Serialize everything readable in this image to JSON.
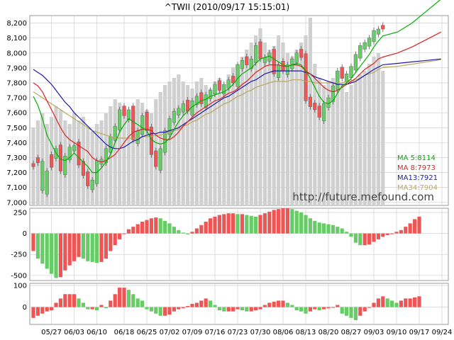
{
  "title": "^TWII  (2010/09/17 15:15:01)",
  "watermark": "http://future.mefound.com",
  "colors": {
    "up": "#66cc66",
    "down": "#ee5555",
    "volume": "#d0d0d0",
    "ma5": "#00b000",
    "ma8": "#dd2222",
    "ma13": "#1a1aaa",
    "ma34": "#b8a860",
    "grid": "#c8c8c8",
    "frame": "#999999"
  },
  "chart_data": [
    {
      "type": "candlestick",
      "name": "price",
      "ylim": [
        6980,
        8250
      ],
      "yticks": [
        "7,000",
        "7,100",
        "7,200",
        "7,300",
        "7,400",
        "7,500",
        "7,600",
        "7,700",
        "7,800",
        "7,900",
        "8,000",
        "8,100",
        "8,200"
      ],
      "ytick_values": [
        7000,
        7100,
        7200,
        7300,
        7400,
        7500,
        7600,
        7700,
        7800,
        7900,
        8000,
        8100,
        8200
      ],
      "xticks": [
        "05/27",
        "06/03",
        "06/10",
        "06/18",
        "06/25",
        "07/02",
        "07/09",
        "07/16",
        "07/23",
        "07/30",
        "08/06",
        "08/13",
        "08/20",
        "08/27",
        "09/03",
        "09/10",
        "09/17",
        "09/24"
      ],
      "xtick_index": [
        4,
        9,
        14,
        20,
        25,
        30,
        35,
        40,
        45,
        50,
        55,
        60,
        65,
        70,
        75,
        80,
        85,
        90
      ],
      "close": [
        7240,
        7300,
        7080,
        7210,
        7320,
        7360,
        7210,
        7310,
        7370,
        7380,
        7250,
        7180,
        7110,
        7150,
        7280,
        7290,
        7360,
        7440,
        7510,
        7620,
        7580,
        7620,
        7420,
        7480,
        7580,
        7480,
        7320,
        7240,
        7360,
        7480,
        7560,
        7610,
        7630,
        7660,
        7610,
        7680,
        7710,
        7660,
        7720,
        7750,
        7790,
        7750,
        7790,
        7820,
        7800,
        7920,
        7950,
        7920,
        7960,
        8050,
        7960,
        7970,
        8000,
        7860,
        7920,
        7880,
        7920,
        7960,
        8000,
        7970,
        7680,
        7640,
        7620,
        7570,
        7660,
        7700,
        7780,
        7880,
        7830,
        7860,
        7910,
        7990,
        8050,
        8070,
        8100,
        8150,
        8160,
        8160
      ],
      "candles_dir": [
        "d",
        "d",
        "u",
        "u",
        "d",
        "u",
        "d",
        "u",
        "u",
        "u",
        "d",
        "d",
        "d",
        "u",
        "u",
        "u",
        "u",
        "u",
        "u",
        "u",
        "d",
        "u",
        "d",
        "u",
        "u",
        "d",
        "d",
        "d",
        "u",
        "u",
        "u",
        "u",
        "u",
        "u",
        "d",
        "u",
        "u",
        "d",
        "u",
        "u",
        "u",
        "d",
        "u",
        "u",
        "d",
        "u",
        "u",
        "d",
        "u",
        "u",
        "d",
        "u",
        "u",
        "d",
        "u",
        "d",
        "u",
        "u",
        "u",
        "d",
        "d",
        "d",
        "d",
        "d",
        "u",
        "u",
        "u",
        "u",
        "d",
        "u",
        "u",
        "u",
        "u",
        "u",
        "u",
        "u",
        "u",
        "d"
      ],
      "series": [
        {
          "name": "MA  5:8114",
          "label": "MA  5:8114"
        },
        {
          "name": "MA  8:7973",
          "label": "MA  8:7973"
        },
        {
          "name": "MA13:7921",
          "label": "MA13:7921"
        },
        {
          "name": "MA34:7904",
          "label": "MA34:7904"
        }
      ],
      "ma5": [
        7710,
        7650,
        7560,
        7450,
        7390,
        7330,
        7290,
        7280,
        7300,
        7330,
        7300,
        7270,
        7240,
        7200,
        7200,
        7230,
        7270,
        7320,
        7400,
        7470,
        7520,
        7560,
        7540,
        7520,
        7500,
        7480,
        7420,
        7400,
        7390,
        7400,
        7430,
        7490,
        7540,
        7580,
        7610,
        7640,
        7660,
        7680,
        7690,
        7710,
        7720,
        7730,
        7740,
        7760,
        7790,
        7830,
        7860,
        7880,
        7900,
        7930,
        7960,
        7970,
        7980,
        7960,
        7940,
        7920,
        7910,
        7920,
        7930,
        7920,
        7880,
        7830,
        7770,
        7710,
        7670,
        7660,
        7680,
        7730,
        7780,
        7800,
        7830,
        7870,
        7910,
        7950,
        7990,
        8040,
        8080,
        8114
      ],
      "ma8": [
        7800,
        7780,
        7740,
        7680,
        7620,
        7560,
        7500,
        7450,
        7420,
        7400,
        7380,
        7360,
        7340,
        7300,
        7280,
        7270,
        7280,
        7300,
        7320,
        7360,
        7400,
        7440,
        7470,
        7480,
        7490,
        7490,
        7480,
        7450,
        7430,
        7420,
        7420,
        7440,
        7470,
        7510,
        7540,
        7570,
        7600,
        7620,
        7640,
        7660,
        7680,
        7690,
        7710,
        7730,
        7740,
        7760,
        7790,
        7810,
        7840,
        7870,
        7890,
        7910,
        7920,
        7920,
        7920,
        7910,
        7910,
        7920,
        7920,
        7910,
        7880,
        7860,
        7830,
        7800,
        7770,
        7750,
        7740,
        7750,
        7770,
        7790,
        7810,
        7830,
        7860,
        7890,
        7910,
        7930,
        7960,
        7973
      ],
      "ma13": [
        7890,
        7870,
        7850,
        7820,
        7790,
        7750,
        7710,
        7670,
        7640,
        7600,
        7570,
        7540,
        7510,
        7480,
        7450,
        7420,
        7390,
        7370,
        7360,
        7360,
        7370,
        7390,
        7410,
        7420,
        7440,
        7450,
        7460,
        7460,
        7470,
        7470,
        7480,
        7490,
        7500,
        7520,
        7540,
        7560,
        7580,
        7600,
        7620,
        7640,
        7660,
        7680,
        7700,
        7710,
        7730,
        7750,
        7770,
        7790,
        7810,
        7820,
        7840,
        7860,
        7870,
        7880,
        7880,
        7880,
        7880,
        7880,
        7880,
        7880,
        7870,
        7860,
        7840,
        7830,
        7820,
        7810,
        7800,
        7790,
        7790,
        7790,
        7800,
        7810,
        7830,
        7850,
        7870,
        7890,
        7905,
        7921
      ],
      "ma34": [
        7740,
        7720,
        7700,
        7680,
        7660,
        7640,
        7620,
        7600,
        7580,
        7560,
        7540,
        7520,
        7500,
        7480,
        7470,
        7460,
        7450,
        7440,
        7430,
        7430,
        7430,
        7430,
        7430,
        7430,
        7440,
        7440,
        7440,
        7450,
        7450,
        7460,
        7470,
        7480,
        7490,
        7510,
        7520,
        7540,
        7550,
        7570,
        7590,
        7600,
        7620,
        7640,
        7660,
        7670,
        7690,
        7710,
        7720,
        7740,
        7750,
        7770,
        7780,
        7790,
        7800,
        7810,
        7810,
        7810,
        7810,
        7820,
        7820,
        7820,
        7810,
        7810,
        7800,
        7800,
        7800,
        7800,
        7800,
        7800,
        7800,
        7810,
        7810,
        7820,
        7830,
        7850,
        7860,
        7870,
        7890,
        7904
      ],
      "future": {
        "ma5": [
          8140,
          8200,
          8280,
          8360
        ],
        "ma8": [
          8000,
          8040,
          8090,
          8140
        ],
        "ma13": [
          7930,
          7940,
          7950,
          7960
        ],
        "ma34": [
          7910,
          7925,
          7940,
          7955
        ]
      }
    },
    {
      "type": "bar",
      "name": "oscillator-1",
      "ylim": [
        -560,
        300
      ],
      "yticks": [
        "250",
        "0",
        "-250",
        "-500"
      ],
      "ytick_values": [
        250,
        0,
        -250,
        -500
      ],
      "values": [
        -210,
        -300,
        -360,
        -420,
        -480,
        -530,
        -520,
        -440,
        -380,
        -330,
        -280,
        -300,
        -330,
        -340,
        -350,
        -340,
        -300,
        -210,
        -140,
        -70,
        0,
        50,
        80,
        110,
        140,
        160,
        180,
        190,
        180,
        150,
        120,
        80,
        40,
        10,
        -10,
        20,
        60,
        100,
        140,
        180,
        200,
        220,
        230,
        240,
        240,
        230,
        230,
        220,
        210,
        200,
        220,
        240,
        260,
        280,
        290,
        300,
        300,
        290,
        270,
        250,
        220,
        180,
        150,
        130,
        120,
        110,
        100,
        80,
        60,
        20,
        -40,
        -110,
        -140,
        -140,
        -130,
        -100,
        -70,
        -40,
        -20,
        0,
        20,
        40,
        80,
        120,
        170,
        200
      ]
    },
    {
      "type": "bar",
      "name": "oscillator-2",
      "ylim": [
        -80,
        110
      ],
      "yticks": [
        "100",
        "0"
      ],
      "ytick_values": [
        100,
        0
      ],
      "values": [
        -50,
        -40,
        -30,
        -20,
        -15,
        20,
        40,
        60,
        60,
        60,
        40,
        20,
        -10,
        -10,
        -15,
        10,
        -5,
        30,
        60,
        90,
        90,
        80,
        60,
        40,
        30,
        -10,
        -20,
        -30,
        -40,
        -40,
        -35,
        -20,
        -10,
        -5,
        5,
        15,
        20,
        30,
        40,
        30,
        10,
        -15,
        -20,
        -20,
        -20,
        -10,
        -15,
        -20,
        -20,
        -15,
        -10,
        10,
        20,
        25,
        30,
        30,
        20,
        10,
        -15,
        -20,
        -30,
        -20,
        -10,
        -15,
        -10,
        -5,
        0,
        10,
        -30,
        -40,
        -50,
        -60,
        -40,
        -20,
        0,
        20,
        40,
        50,
        40,
        30,
        20,
        30,
        40,
        40,
        45,
        50
      ]
    }
  ]
}
